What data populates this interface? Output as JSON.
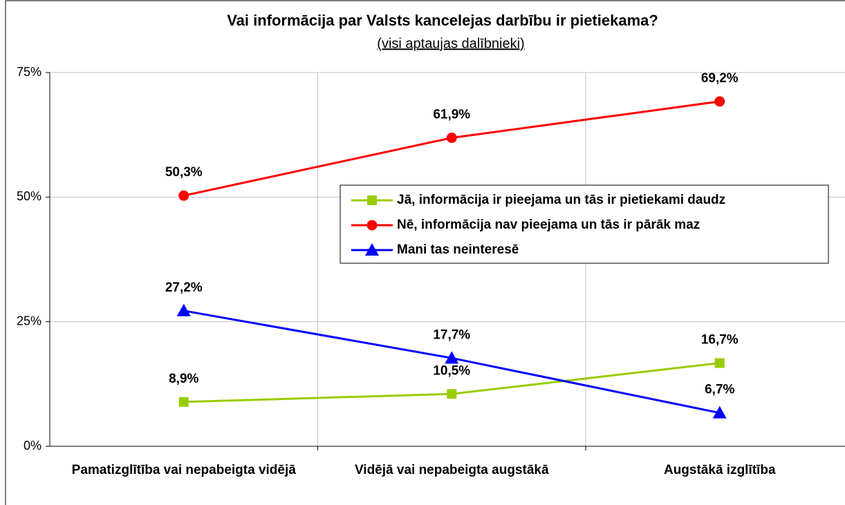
{
  "chart_data": {
    "type": "line",
    "title": "Vai informācija par Valsts kancelejas darbību ir pietiekama?",
    "subtitle": "(visi aptaujas dalībnieki)",
    "categories": [
      "Pamatizglītība vai nepabeigta vidējā",
      "Vidējā vai nepabeigta augstākā",
      "Augstākā izglītība"
    ],
    "series": [
      {
        "name": "Jā, informācija ir pieejama un tās ir pietiekami daudz",
        "color": "#99cc00",
        "marker": "square",
        "values": [
          8.9,
          10.5,
          16.7
        ],
        "value_labels": [
          "8,9%",
          "10,5%",
          "16,7%"
        ]
      },
      {
        "name": "Nē, informācija nav pieejama un tās ir pārāk maz",
        "color": "#ff0000",
        "marker": "circle",
        "values": [
          50.3,
          61.9,
          69.2
        ],
        "value_labels": [
          "50,3%",
          "61,9%",
          "69,2%"
        ]
      },
      {
        "name": "Mani tas  neinteresē",
        "color": "#0000ff",
        "marker": "triangle",
        "values": [
          27.2,
          17.7,
          6.7
        ],
        "value_labels": [
          "27,2%",
          "17,7%",
          "6,7%"
        ]
      }
    ],
    "ylim": [
      0,
      75
    ],
    "yticks": [
      {
        "value": 0,
        "label": "0%"
      },
      {
        "value": 25,
        "label": "25%"
      },
      {
        "value": 50,
        "label": "50%"
      },
      {
        "value": 75,
        "label": "75%"
      }
    ],
    "grid": true,
    "legend": "right"
  }
}
